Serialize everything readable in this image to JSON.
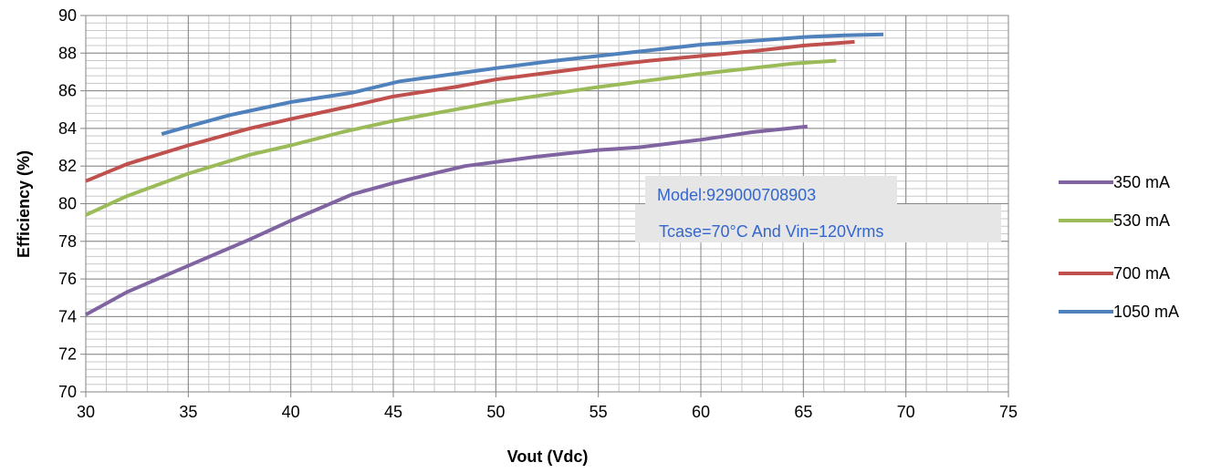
{
  "chart_data": {
    "type": "line",
    "title": "",
    "xlabel": "Vout (Vdc)",
    "ylabel": "Efficiency (%)",
    "xlim": [
      30,
      75
    ],
    "ylim": [
      70,
      90
    ],
    "xticks": [
      30,
      35,
      40,
      45,
      50,
      55,
      60,
      65,
      70,
      75
    ],
    "yticks": [
      70,
      72,
      74,
      76,
      78,
      80,
      82,
      84,
      86,
      88,
      90
    ],
    "x_minor_step": 1,
    "y_minor_step": 0.4,
    "grid": true,
    "legend_position": "right",
    "series": [
      {
        "name": "350 mA",
        "color": "#8064a2",
        "points": [
          [
            30,
            74.1
          ],
          [
            32,
            75.3
          ],
          [
            35,
            76.7
          ],
          [
            38,
            78.1
          ],
          [
            40,
            79.1
          ],
          [
            43,
            80.5
          ],
          [
            45,
            81.1
          ],
          [
            48.5,
            82.0
          ],
          [
            52,
            82.5
          ],
          [
            55,
            82.85
          ],
          [
            57,
            83.0
          ],
          [
            60,
            83.4
          ],
          [
            62.5,
            83.8
          ],
          [
            65.2,
            84.1
          ]
        ]
      },
      {
        "name": "530 mA",
        "color": "#9bbb59",
        "points": [
          [
            30,
            79.4
          ],
          [
            32,
            80.4
          ],
          [
            35,
            81.6
          ],
          [
            38,
            82.6
          ],
          [
            40,
            83.1
          ],
          [
            42.5,
            83.8
          ],
          [
            45,
            84.4
          ],
          [
            48,
            85.0
          ],
          [
            50,
            85.4
          ],
          [
            52.5,
            85.8
          ],
          [
            55,
            86.2
          ],
          [
            57.5,
            86.55
          ],
          [
            60,
            86.9
          ],
          [
            62.5,
            87.2
          ],
          [
            64.5,
            87.45
          ],
          [
            66.6,
            87.6
          ]
        ]
      },
      {
        "name": "700 mA",
        "color": "#c0504d",
        "points": [
          [
            30,
            81.2
          ],
          [
            32,
            82.1
          ],
          [
            35,
            83.1
          ],
          [
            38,
            84.0
          ],
          [
            40,
            84.5
          ],
          [
            43,
            85.2
          ],
          [
            45,
            85.7
          ],
          [
            48,
            86.2
          ],
          [
            50,
            86.6
          ],
          [
            52.5,
            86.95
          ],
          [
            55,
            87.3
          ],
          [
            57.5,
            87.6
          ],
          [
            60,
            87.85
          ],
          [
            62.5,
            88.1
          ],
          [
            65,
            88.4
          ],
          [
            67.5,
            88.6
          ]
        ]
      },
      {
        "name": "1050 mA",
        "color": "#4f81bd",
        "points": [
          [
            33.7,
            83.7
          ],
          [
            35,
            84.1
          ],
          [
            37,
            84.7
          ],
          [
            40,
            85.4
          ],
          [
            43,
            85.9
          ],
          [
            45.3,
            86.5
          ],
          [
            48,
            86.9
          ],
          [
            50,
            87.2
          ],
          [
            52.5,
            87.55
          ],
          [
            55,
            87.85
          ],
          [
            57.5,
            88.15
          ],
          [
            60,
            88.45
          ],
          [
            62.5,
            88.65
          ],
          [
            65,
            88.85
          ],
          [
            67,
            88.95
          ],
          [
            68.9,
            89.0
          ]
        ]
      }
    ],
    "annotation": {
      "line1": "Model:929000708903",
      "line2": "Tcase=70°C And Vin=120Vrms",
      "text_color": "#3366cc",
      "box_color": "#e6e6e6"
    }
  }
}
